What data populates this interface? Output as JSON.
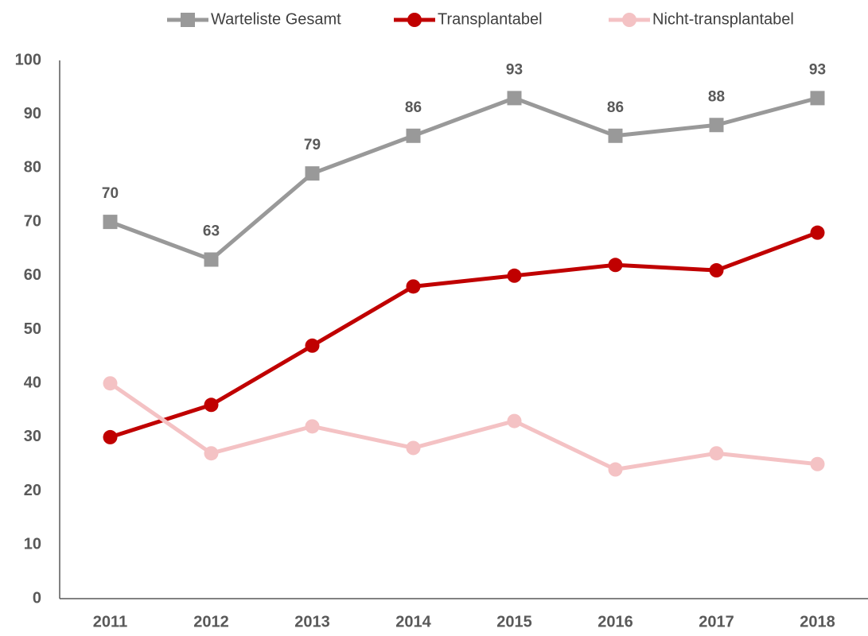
{
  "chart_data": {
    "type": "line",
    "categories": [
      "2011",
      "2012",
      "2013",
      "2014",
      "2015",
      "2016",
      "2017",
      "2018"
    ],
    "series": [
      {
        "name": "Warteliste Gesamt",
        "color": "#999999",
        "marker": "square",
        "data_labels": true,
        "values": [
          70,
          63,
          79,
          86,
          93,
          86,
          88,
          93
        ]
      },
      {
        "name": "Transplantabel",
        "color": "#c00000",
        "marker": "circle",
        "data_labels": false,
        "values": [
          30,
          36,
          47,
          58,
          60,
          62,
          61,
          68
        ]
      },
      {
        "name": "Nicht-transplantabel",
        "color": "#f4c2c4",
        "marker": "circle",
        "data_labels": false,
        "values": [
          40,
          27,
          32,
          28,
          33,
          24,
          27,
          25
        ]
      }
    ],
    "ylim": [
      0,
      100
    ],
    "yticks": [
      0,
      10,
      20,
      30,
      40,
      50,
      60,
      70,
      80,
      90,
      100
    ],
    "grid": false,
    "legend": "top"
  }
}
